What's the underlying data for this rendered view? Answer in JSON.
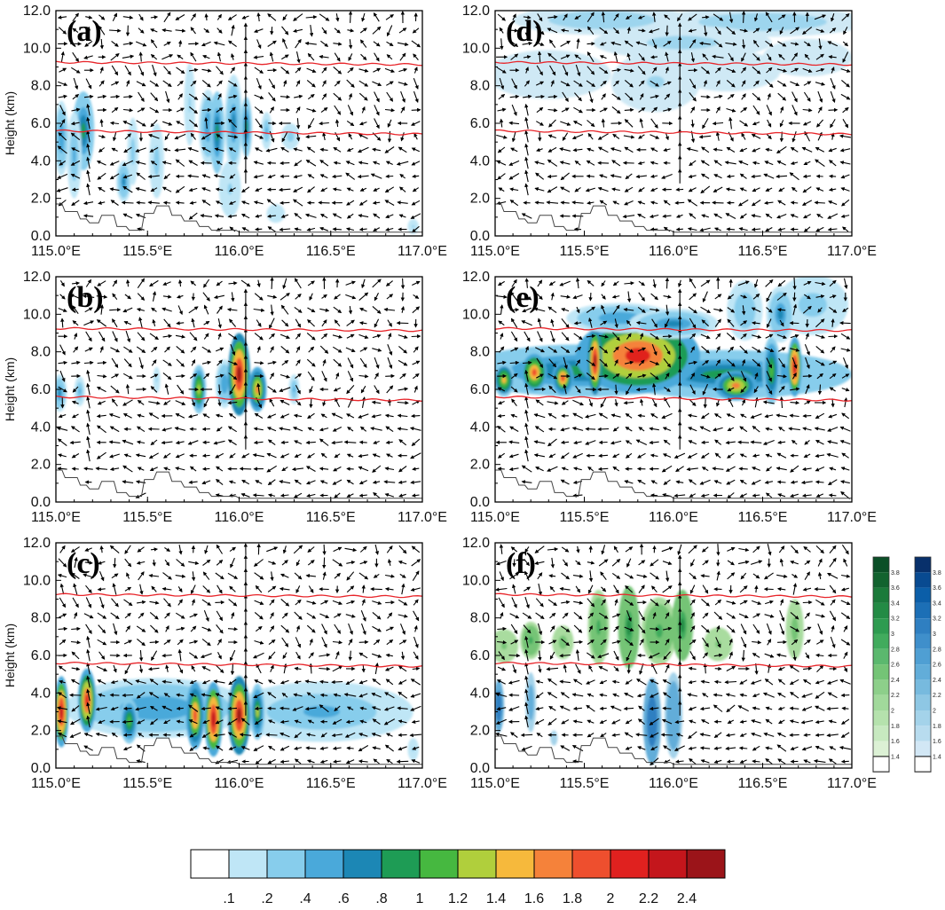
{
  "chart_data": {
    "type": "heatmap",
    "x_ticks": [
      "115.0°E",
      "115.5°E",
      "116.0°E",
      "116.5°E",
      "117.0°E"
    ],
    "x_range": [
      115.0,
      117.0
    ],
    "y_ticks": [
      "0.0",
      "2.0",
      "4.0",
      "6.0",
      "8.0",
      "10.0",
      "12.0"
    ],
    "y_range": [
      0,
      12
    ],
    "ylabel": "Height (km)",
    "isotherm_levels_km": [
      5.5,
      9.2
    ],
    "colorbar": {
      "tick_labels": [
        ".1",
        ".2",
        ".4",
        ".6",
        ".8",
        "1",
        "1.2",
        "1.4",
        "1.6",
        "1.8",
        "2",
        "2.2",
        "2.4"
      ],
      "colors": [
        "#ffffff",
        "#bfe6f6",
        "#87cdec",
        "#4aa9da",
        "#1c87b5",
        "#1e9c55",
        "#46b840",
        "#b0cf3c",
        "#f6b93c",
        "#f5823a",
        "#ee4f2e",
        "#e0211f",
        "#c4161c",
        "#9b1419"
      ]
    },
    "side_colorbars": [
      {
        "name": "green",
        "tick_labels": [
          "3.8",
          "3.6",
          "3.4",
          "3.2",
          "3",
          "2.8",
          "2.6",
          "2.4",
          "2.2",
          "2",
          "1.8",
          "1.6",
          "1.4"
        ],
        "colors": [
          "#0b4f27",
          "#12632f",
          "#1b7a3a",
          "#238b45",
          "#2e9b50",
          "#41ab5d",
          "#5bb86e",
          "#74c476",
          "#8dcf8a",
          "#a1d99b",
          "#b5e2ad",
          "#c7e9c0",
          "#dcf1d5",
          "#ffffff"
        ]
      },
      {
        "name": "blue",
        "tick_labels": [
          "3.8",
          "3.6",
          "3.4",
          "3.2",
          "3",
          "2.8",
          "2.6",
          "2.4",
          "2.2",
          "2",
          "1.8",
          "1.6",
          "1.4"
        ],
        "colors": [
          "#08306b",
          "#084a91",
          "#0b5ea8",
          "#1c6fb6",
          "#2f7fc1",
          "#3f8fcb",
          "#4f9fd3",
          "#62add9",
          "#77bade",
          "#8ec7e4",
          "#a4d3ea",
          "#b8dcef",
          "#d2e7f5",
          "#ffffff"
        ]
      }
    ],
    "panels": [
      {
        "label": "(a)",
        "blobs": [
          {
            "x": 115.03,
            "z": 5.2,
            "w": 0.04,
            "h": 2.0,
            "v": 0.5
          },
          {
            "x": 115.15,
            "z": 5.6,
            "w": 0.06,
            "h": 2.1,
            "v": 0.9
          },
          {
            "x": 115.1,
            "z": 4.3,
            "w": 0.04,
            "h": 2.3,
            "v": 0.4
          },
          {
            "x": 115.37,
            "z": 2.9,
            "w": 0.04,
            "h": 1.1,
            "v": 0.6
          },
          {
            "x": 115.42,
            "z": 4.5,
            "w": 0.03,
            "h": 1.8,
            "v": 0.3
          },
          {
            "x": 115.55,
            "z": 4.0,
            "w": 0.04,
            "h": 2.0,
            "v": 0.25
          },
          {
            "x": 115.73,
            "z": 7.0,
            "w": 0.03,
            "h": 2.2,
            "v": 0.2
          },
          {
            "x": 115.83,
            "z": 5.8,
            "w": 0.05,
            "h": 2.0,
            "v": 0.5
          },
          {
            "x": 115.88,
            "z": 5.5,
            "w": 0.04,
            "h": 2.2,
            "v": 0.9
          },
          {
            "x": 115.97,
            "z": 6.0,
            "w": 0.05,
            "h": 2.6,
            "v": 0.6
          },
          {
            "x": 116.04,
            "z": 5.8,
            "w": 0.03,
            "h": 1.6,
            "v": 0.9
          },
          {
            "x": 116.15,
            "z": 5.6,
            "w": 0.03,
            "h": 1.0,
            "v": 0.45
          },
          {
            "x": 116.28,
            "z": 5.3,
            "w": 0.05,
            "h": 0.7,
            "v": 0.3
          },
          {
            "x": 115.95,
            "z": 2.5,
            "w": 0.06,
            "h": 1.5,
            "v": 0.2
          },
          {
            "x": 116.2,
            "z": 1.2,
            "w": 0.05,
            "h": 0.5,
            "v": 0.15
          },
          {
            "x": 116.95,
            "z": 0.5,
            "w": 0.03,
            "h": 0.4,
            "v": 0.2
          }
        ]
      },
      {
        "label": "(d)",
        "blobs": [
          {
            "x": 115.6,
            "z": 11.5,
            "w": 0.5,
            "h": 0.8,
            "v": 0.3
          },
          {
            "x": 116.5,
            "z": 11.4,
            "w": 0.6,
            "h": 0.8,
            "v": 0.3
          },
          {
            "x": 115.3,
            "z": 8.6,
            "w": 0.35,
            "h": 1.3,
            "v": 0.15
          },
          {
            "x": 115.9,
            "z": 8.2,
            "w": 0.25,
            "h": 1.6,
            "v": 0.2
          },
          {
            "x": 116.3,
            "z": 8.8,
            "w": 0.3,
            "h": 1.1,
            "v": 0.15
          },
          {
            "x": 116.75,
            "z": 9.5,
            "w": 0.25,
            "h": 1.0,
            "v": 0.12
          },
          {
            "x": 116.05,
            "z": 10.3,
            "w": 0.5,
            "h": 0.9,
            "v": 0.25
          }
        ]
      },
      {
        "label": "(b)",
        "blobs": [
          {
            "x": 115.02,
            "z": 5.8,
            "w": 0.04,
            "h": 1.0,
            "v": 0.6
          },
          {
            "x": 115.13,
            "z": 5.9,
            "w": 0.03,
            "h": 0.8,
            "v": 0.4
          },
          {
            "x": 115.55,
            "z": 6.5,
            "w": 0.02,
            "h": 0.7,
            "v": 0.2
          },
          {
            "x": 115.78,
            "z": 6.0,
            "w": 0.04,
            "h": 1.3,
            "v": 1.3
          },
          {
            "x": 115.92,
            "z": 6.3,
            "w": 0.05,
            "h": 1.3,
            "v": 0.55
          },
          {
            "x": 116.0,
            "z": 6.8,
            "w": 0.06,
            "h": 2.2,
            "v": 2.4
          },
          {
            "x": 116.1,
            "z": 6.0,
            "w": 0.05,
            "h": 1.2,
            "v": 1.6
          },
          {
            "x": 116.3,
            "z": 6.0,
            "w": 0.03,
            "h": 0.8,
            "v": 0.4
          }
        ]
      },
      {
        "label": "(e)",
        "blobs": [
          {
            "x": 115.5,
            "z": 7.0,
            "w": 0.7,
            "h": 1.4,
            "v": 0.9
          },
          {
            "x": 116.3,
            "z": 6.8,
            "w": 0.7,
            "h": 1.3,
            "v": 0.85
          },
          {
            "x": 115.8,
            "z": 7.8,
            "w": 0.35,
            "h": 2.0,
            "v": 2.0
          },
          {
            "x": 115.56,
            "z": 7.5,
            "w": 0.04,
            "h": 1.8,
            "v": 2.4
          },
          {
            "x": 115.38,
            "z": 6.6,
            "w": 0.06,
            "h": 0.9,
            "v": 1.8
          },
          {
            "x": 115.22,
            "z": 6.9,
            "w": 0.07,
            "h": 1.0,
            "v": 1.9
          },
          {
            "x": 115.05,
            "z": 6.5,
            "w": 0.06,
            "h": 0.9,
            "v": 1.4
          },
          {
            "x": 116.35,
            "z": 6.2,
            "w": 0.12,
            "h": 0.8,
            "v": 1.6
          },
          {
            "x": 116.68,
            "z": 7.2,
            "w": 0.04,
            "h": 1.6,
            "v": 2.3
          },
          {
            "x": 116.55,
            "z": 7.0,
            "w": 0.05,
            "h": 1.8,
            "v": 1.0
          },
          {
            "x": 116.78,
            "z": 10.5,
            "w": 0.2,
            "h": 1.6,
            "v": 0.25
          },
          {
            "x": 116.6,
            "z": 10.0,
            "w": 0.08,
            "h": 1.5,
            "v": 0.6
          },
          {
            "x": 116.4,
            "z": 10.2,
            "w": 0.1,
            "h": 1.6,
            "v": 0.35
          },
          {
            "x": 115.7,
            "z": 9.8,
            "w": 0.3,
            "h": 0.8,
            "v": 0.5
          },
          {
            "x": 116.0,
            "z": 9.5,
            "w": 0.25,
            "h": 0.8,
            "v": 0.6
          }
        ]
      },
      {
        "label": "(c)",
        "blobs": [
          {
            "x": 115.55,
            "z": 3.2,
            "w": 0.5,
            "h": 1.6,
            "v": 0.5
          },
          {
            "x": 116.45,
            "z": 3.0,
            "w": 0.5,
            "h": 1.6,
            "v": 0.45
          },
          {
            "x": 115.03,
            "z": 3.0,
            "w": 0.04,
            "h": 1.9,
            "v": 2.3
          },
          {
            "x": 115.17,
            "z": 3.6,
            "w": 0.05,
            "h": 1.7,
            "v": 2.0
          },
          {
            "x": 115.4,
            "z": 2.5,
            "w": 0.05,
            "h": 1.2,
            "v": 1.0
          },
          {
            "x": 115.76,
            "z": 2.8,
            "w": 0.05,
            "h": 1.8,
            "v": 1.8
          },
          {
            "x": 115.86,
            "z": 2.6,
            "w": 0.05,
            "h": 2.0,
            "v": 2.3
          },
          {
            "x": 116.0,
            "z": 2.8,
            "w": 0.06,
            "h": 2.1,
            "v": 2.4
          },
          {
            "x": 116.1,
            "z": 3.0,
            "w": 0.04,
            "h": 1.5,
            "v": 1.2
          },
          {
            "x": 116.95,
            "z": 1.0,
            "w": 0.03,
            "h": 0.6,
            "v": 0.2
          }
        ]
      },
      {
        "label": "(f)",
        "blobs": [
          {
            "x": 115.05,
            "z": 6.5,
            "w": 0.08,
            "h": 0.9,
            "v": 0.5
          },
          {
            "x": 115.2,
            "z": 6.8,
            "w": 0.06,
            "h": 1.0,
            "v": 0.8
          },
          {
            "x": 115.38,
            "z": 6.7,
            "w": 0.06,
            "h": 0.9,
            "v": 0.6
          },
          {
            "x": 115.58,
            "z": 7.5,
            "w": 0.06,
            "h": 2.0,
            "v": 0.9
          },
          {
            "x": 115.75,
            "z": 7.5,
            "w": 0.06,
            "h": 2.2,
            "v": 1.0
          },
          {
            "x": 115.92,
            "z": 7.3,
            "w": 0.1,
            "h": 1.8,
            "v": 0.85
          },
          {
            "x": 116.05,
            "z": 7.6,
            "w": 0.06,
            "h": 1.9,
            "v": 1.0
          },
          {
            "x": 116.25,
            "z": 6.6,
            "w": 0.08,
            "h": 0.9,
            "v": 0.5
          },
          {
            "x": 116.68,
            "z": 7.4,
            "w": 0.05,
            "h": 1.6,
            "v": 0.6
          },
          {
            "x": 115.02,
            "z": 3.3,
            "w": 0.03,
            "h": 1.4,
            "v": 0.8
          },
          {
            "x": 115.2,
            "z": 3.5,
            "w": 0.03,
            "h": 1.6,
            "v": 0.4
          },
          {
            "x": 115.33,
            "z": 1.6,
            "w": 0.02,
            "h": 0.4,
            "v": 0.2
          },
          {
            "x": 115.88,
            "z": 2.5,
            "w": 0.05,
            "h": 2.3,
            "v": 0.8
          },
          {
            "x": 116.0,
            "z": 2.8,
            "w": 0.05,
            "h": 2.3,
            "v": 0.5
          }
        ]
      }
    ]
  }
}
